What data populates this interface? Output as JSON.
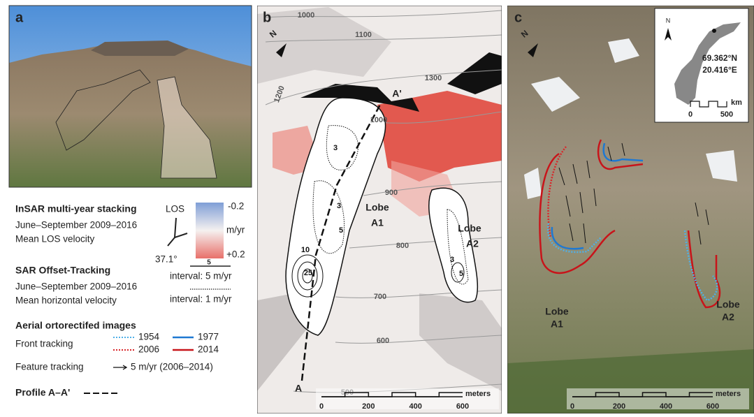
{
  "panel_a": {
    "label": "a"
  },
  "legend": {
    "insar": {
      "title": "InSAR multi-year stacking",
      "period": "June–September 2009–2016",
      "measure": "Mean LOS velocity",
      "los": "LOS",
      "angle": "37.1°",
      "scale_min": "-0.2",
      "unit": "m/yr",
      "scale_max": "+0.2"
    },
    "offset": {
      "title": "SAR Offset-Tracking",
      "period": "June–September 2009–2016",
      "measure": "Mean horizontal velocity",
      "contour_label": "5",
      "solid": "interval: 5 m/yr",
      "dotted": "interval: 1 m/yr"
    },
    "aerial": {
      "title": "Aerial ortorectifed images",
      "front": "Front tracking",
      "years": [
        "1954",
        "1977",
        "2006",
        "2014"
      ],
      "feature": "Feature tracking",
      "feature_scale": "5 m/yr (2006–2014)"
    },
    "profile": "Profile A–A'"
  },
  "panel_b": {
    "label": "b",
    "north": "N",
    "elevation_labels": [
      "1000",
      "1100",
      "1200",
      "1300",
      "1000",
      "900",
      "800",
      "700",
      "600",
      "500"
    ],
    "velocity_labels": [
      "3",
      "3",
      "5",
      "10",
      "25",
      "3",
      "5"
    ],
    "lobe_a1": [
      "Lobe",
      "A1"
    ],
    "lobe_a2": [
      "Lobe",
      "A2"
    ],
    "profile_start": "A",
    "profile_end": "A'",
    "scale": {
      "ticks": [
        "0",
        "200",
        "400",
        "600"
      ],
      "unit": "meters"
    }
  },
  "panel_c": {
    "label": "c",
    "north": "N",
    "inset": {
      "north": "N",
      "lat": "69.362°N",
      "lon": "20.416°E",
      "ticks": [
        "0",
        "500"
      ],
      "unit": "km"
    },
    "lobe_a1": [
      "Lobe",
      "A1"
    ],
    "lobe_a2": [
      "Lobe",
      "A2"
    ],
    "scale": {
      "ticks": [
        "0",
        "200",
        "400",
        "600"
      ],
      "unit": "meters"
    }
  }
}
